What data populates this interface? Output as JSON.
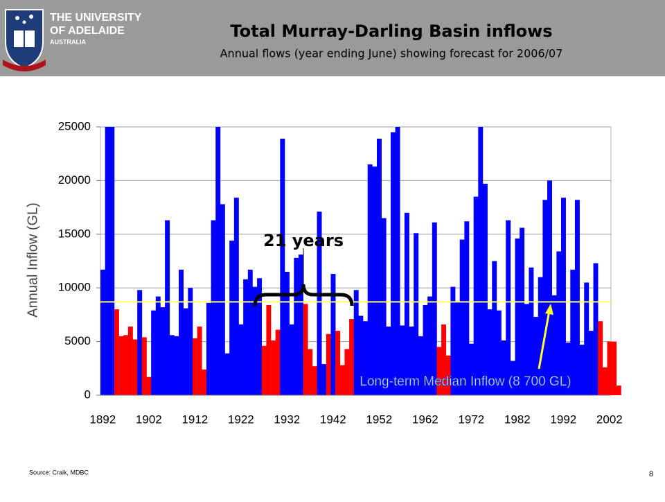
{
  "header": {
    "university": [
      "THE UNIVERSITY",
      "OF ADELAIDE",
      "AUSTRALIA"
    ]
  },
  "chart_data": {
    "type": "bar",
    "title": "Total Murray-Darling Basin inflows",
    "subtitle": "Annual flows (year ending June) showing forecast for 2006/07",
    "y_label": "Annual Inflow (GL)",
    "categories": [
      "1892",
      null,
      null,
      null,
      null,
      null,
      null,
      null,
      null,
      null,
      "1902",
      null,
      null,
      null,
      null,
      null,
      null,
      null,
      null,
      null,
      "1912",
      null,
      null,
      null,
      null,
      null,
      null,
      null,
      null,
      null,
      "1922",
      null,
      null,
      null,
      null,
      null,
      null,
      null,
      null,
      null,
      "1932",
      null,
      null,
      null,
      null,
      null,
      null,
      null,
      null,
      null,
      "1942",
      null,
      null,
      null,
      null,
      null,
      null,
      null,
      null,
      null,
      "1952",
      null,
      null,
      null,
      null,
      null,
      null,
      null,
      null,
      null,
      "1962",
      null,
      null,
      null,
      null,
      null,
      null,
      null,
      null,
      null,
      "1972",
      null,
      null,
      null,
      null,
      null,
      null,
      null,
      null,
      null,
      "1982",
      null,
      null,
      null,
      null,
      null,
      null,
      null,
      null,
      null,
      "1992",
      null,
      null,
      null,
      null,
      null,
      null,
      null,
      null,
      null,
      "2002",
      null,
      null
    ],
    "values": [
      11700,
      25000,
      25000,
      8000,
      5500,
      5600,
      6400,
      5200,
      9800,
      5400,
      1700,
      7900,
      9200,
      8200,
      16300,
      5600,
      5500,
      11700,
      8100,
      10000,
      5300,
      6400,
      2400,
      8600,
      16300,
      25000,
      17800,
      3900,
      14400,
      18400,
      6600,
      10800,
      11700,
      10100,
      10900,
      4600,
      8400,
      5100,
      6100,
      23900,
      11500,
      6600,
      12800,
      13100,
      8500,
      4300,
      2700,
      17100,
      2900,
      5700,
      11300,
      6000,
      2800,
      4300,
      7100,
      9800,
      7400,
      6900,
      21500,
      21300,
      23900,
      16500,
      6400,
      24500,
      25000,
      6500,
      17000,
      6400,
      15100,
      5500,
      8400,
      9200,
      16100,
      4500,
      6600,
      3700,
      10100,
      8700,
      14500,
      16200,
      4800,
      18500,
      25000,
      19700,
      8000,
      12500,
      7900,
      5100,
      16300,
      3200,
      14600,
      15600,
      8500,
      11900,
      7300,
      11000,
      18200,
      20000,
      9300,
      13400,
      18400,
      4900,
      11700,
      18200,
      4700,
      10500,
      6000,
      12300,
      6900,
      2600,
      5000,
      5000,
      900
    ],
    "colors": [
      "#0000ff",
      "#0000ff",
      "#0000ff",
      "#ff0000",
      "#ff0000",
      "#ff0000",
      "#ff0000",
      "#ff0000",
      "#0000ff",
      "#ff0000",
      "#ff0000",
      "#0000ff",
      "#0000ff",
      "#0000ff",
      "#0000ff",
      "#0000ff",
      "#0000ff",
      "#0000ff",
      "#0000ff",
      "#0000ff",
      "#ff0000",
      "#ff0000",
      "#ff0000",
      "#0000ff",
      "#0000ff",
      "#0000ff",
      "#0000ff",
      "#0000ff",
      "#0000ff",
      "#0000ff",
      "#0000ff",
      "#0000ff",
      "#0000ff",
      "#0000ff",
      "#0000ff",
      "#ff0000",
      "#ff0000",
      "#ff0000",
      "#ff0000",
      "#0000ff",
      "#0000ff",
      "#0000ff",
      "#0000ff",
      "#0000ff",
      "#ff0000",
      "#ff0000",
      "#ff0000",
      "#0000ff",
      "#0000ff",
      "#ff0000",
      "#0000ff",
      "#ff0000",
      "#ff0000",
      "#ff0000",
      "#ff0000",
      "#0000ff",
      "#0000ff",
      "#0000ff",
      "#0000ff",
      "#0000ff",
      "#0000ff",
      "#0000ff",
      "#0000ff",
      "#0000ff",
      "#0000ff",
      "#0000ff",
      "#0000ff",
      "#0000ff",
      "#0000ff",
      "#0000ff",
      "#0000ff",
      "#0000ff",
      "#0000ff",
      "#ff0000",
      "#ff0000",
      "#ff0000",
      "#0000ff",
      "#0000ff",
      "#0000ff",
      "#0000ff",
      "#0000ff",
      "#0000ff",
      "#0000ff",
      "#0000ff",
      "#0000ff",
      "#0000ff",
      "#0000ff",
      "#0000ff",
      "#0000ff",
      "#0000ff",
      "#0000ff",
      "#0000ff",
      "#0000ff",
      "#0000ff",
      "#0000ff",
      "#0000ff",
      "#0000ff",
      "#0000ff",
      "#0000ff",
      "#0000ff",
      "#0000ff",
      "#0000ff",
      "#0000ff",
      "#0000ff",
      "#0000ff",
      "#0000ff",
      "#0000ff",
      "#0000ff",
      "#ff0000",
      "#ff0000",
      "#ff0000",
      "#ff0000",
      "#ff0000"
    ],
    "ylim": [
      0,
      25000
    ],
    "yticks": [
      0,
      5000,
      10000,
      15000,
      20000,
      25000
    ],
    "grid": true,
    "median": 8700,
    "median_color": "#ffff66",
    "annotations": {
      "span": "21 years",
      "median": "Long-term Median Inflow (8 700 GL)"
    }
  },
  "footer": {
    "source": "Source: Craik, MDBC",
    "page": "8"
  }
}
